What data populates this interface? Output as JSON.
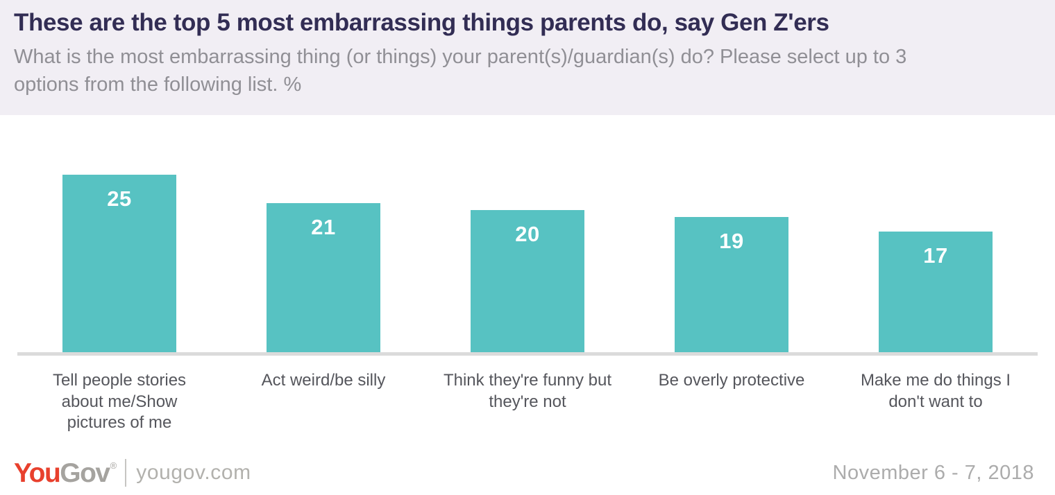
{
  "header": {
    "title": "These are the top 5 most embarrassing things parents do, say Gen Z'ers",
    "subtitle": "What is the most embarrassing thing (or things) your parent(s)/guardian(s) do? Please select up to 3 options from the following list. %"
  },
  "chart_data": {
    "type": "bar",
    "categories": [
      "Tell people stories about me/Show pictures of me",
      "Act weird/be silly",
      "Think they're funny but they're not",
      "Be overly protective",
      "Make me do things I don't want to"
    ],
    "values": [
      25,
      21,
      20,
      19,
      17
    ],
    "title": "These are the top 5 most embarrassing things parents do, say Gen Z'ers",
    "xlabel": "",
    "ylabel": "",
    "unit": "%",
    "ylim": [
      0,
      25
    ],
    "grid": false,
    "legend": false,
    "value_labels_position": "inside-top",
    "bar_color": "#57c2c2"
  },
  "footer": {
    "logo_you": "You",
    "logo_gov": "Gov",
    "registered_mark": "®",
    "site": "yougov.com",
    "date": "November 6 - 7, 2018"
  },
  "colors": {
    "header_background": "#f1eef4",
    "title_text": "#322d54",
    "subtitle_text": "#908f95",
    "bar_fill": "#57c2c2",
    "bar_value_text": "#ffffff",
    "axis_line": "#dbdbdb",
    "category_text": "#55565c",
    "logo_red": "#e8402d",
    "logo_gray": "#a5a39f",
    "footer_gray": "#b2b1ad",
    "date_gray": "#acacac"
  }
}
